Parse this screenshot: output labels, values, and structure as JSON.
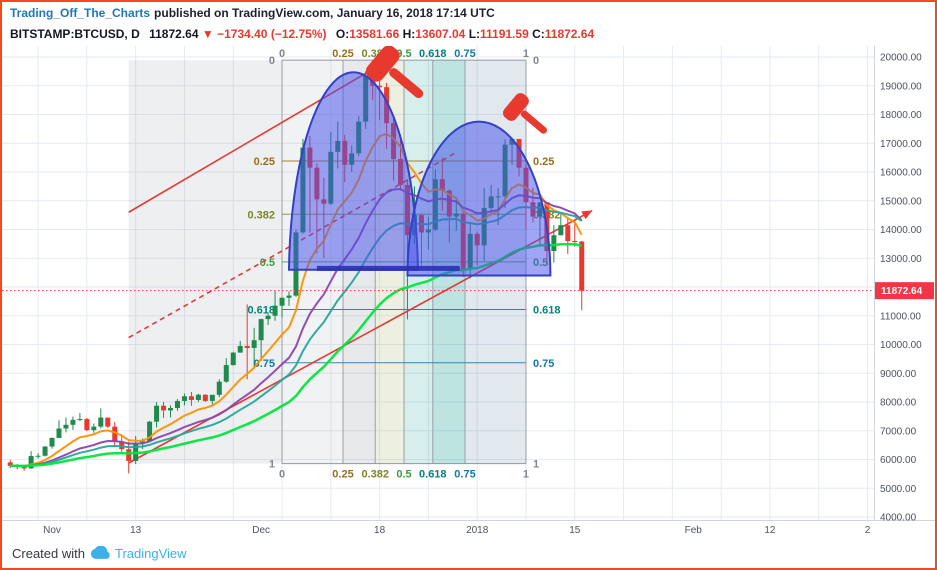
{
  "header": {
    "author": "Trading_Off_The_Charts",
    "published": "published on TradingView.com, January 16, 2018 17:14 UTC"
  },
  "symbol_bar": {
    "symbol": "BITSTAMP:BTCUSD, D",
    "price": "11872.64",
    "arrow": "▼",
    "change": "−1734.40 (−12.75%)",
    "o_label": "O:",
    "o_value": "13581.66",
    "h_label": "H:",
    "h_value": "13607.04",
    "l_label": "L:",
    "l_value": "11191.59",
    "c_label": "C:",
    "c_value": "11872.64"
  },
  "footer": {
    "created_with": "Created with",
    "brand": "TradingView"
  },
  "chart_data": {
    "type": "candlestick",
    "symbol": "BITSTAMP:BTCUSD",
    "interval": "D",
    "start_date_of_first_bar": "2017-10-26",
    "last_price": 11872.64,
    "last_price_label": "11872.64",
    "price_axis": {
      "min": 4000,
      "max": 20000,
      "step": 1000,
      "labels": [
        "20000.00",
        "19000.00",
        "18000.00",
        "17000.00",
        "16000.00",
        "15000.00",
        "14000.00",
        "13000.00",
        "12000.00",
        "11000.00",
        "10000.00",
        "9000.00",
        "8000.00",
        "7000.00",
        "6000.00",
        "5000.00",
        "4000.00"
      ]
    },
    "time_ticks": [
      {
        "day": 6,
        "label": "Nov"
      },
      {
        "day": 18,
        "label": "13"
      },
      {
        "day": 36,
        "label": "Dec"
      },
      {
        "day": 53,
        "label": "18"
      },
      {
        "day": 67,
        "label": "2018"
      },
      {
        "day": 81,
        "label": "15"
      },
      {
        "day": 98,
        "label": "Feb"
      },
      {
        "day": 109,
        "label": "12"
      },
      {
        "day": 123,
        "label": "2"
      }
    ],
    "colors": {
      "up": "#208a4c",
      "down": "#e8392f",
      "grid": "#e5ebf1",
      "axis_text": "#4c525e",
      "price_line": "#f23645"
    },
    "moving_averages": [
      {
        "period": 10,
        "color": "#ff9100",
        "width": 2
      },
      {
        "period": 21,
        "color": "#8e44ad",
        "width": 2
      },
      {
        "period": 30,
        "color": "#26a69a",
        "width": 2
      },
      {
        "period": 55,
        "color": "#00e63c",
        "width": 2.5
      }
    ],
    "ohlc": [
      [
        5900,
        5988,
        5700,
        5780
      ],
      [
        5780,
        5840,
        5656,
        5754
      ],
      [
        5754,
        5795,
        5611,
        5690
      ],
      [
        5690,
        6290,
        5684,
        6120
      ],
      [
        6120,
        6222,
        6030,
        6130
      ],
      [
        6130,
        6470,
        6103,
        6450
      ],
      [
        6450,
        6767,
        6377,
        6750
      ],
      [
        6750,
        7367,
        6758,
        7078
      ],
      [
        7078,
        7461,
        6945,
        7207
      ],
      [
        7207,
        7492,
        7031,
        7379
      ],
      [
        7379,
        7617,
        7333,
        7407
      ],
      [
        7407,
        7445,
        6988,
        7022
      ],
      [
        7022,
        7253,
        6927,
        7144
      ],
      [
        7144,
        7776,
        7080,
        7459
      ],
      [
        7459,
        7459,
        7101,
        7143
      ],
      [
        7143,
        7312,
        6436,
        6618
      ],
      [
        6618,
        6873,
        6204,
        6357
      ],
      [
        6357,
        6625,
        5519,
        5950
      ],
      [
        5950,
        6811,
        5844,
        6559
      ],
      [
        6559,
        6731,
        6361,
        6635
      ],
      [
        6635,
        7342,
        6634,
        7315
      ],
      [
        7315,
        7997,
        7114,
        7871
      ],
      [
        7871,
        8004,
        7448,
        7708
      ],
      [
        7708,
        7884,
        7463,
        7790
      ],
      [
        7790,
        8101,
        7694,
        8036
      ],
      [
        8036,
        8296,
        7884,
        8200
      ],
      [
        8200,
        8348,
        7868,
        8071
      ],
      [
        8071,
        8289,
        8005,
        8253
      ],
      [
        8253,
        8267,
        8002,
        8038
      ],
      [
        8038,
        8250,
        7858,
        8250
      ],
      [
        8250,
        8790,
        8169,
        8707
      ],
      [
        8707,
        9522,
        8668,
        9284
      ],
      [
        9284,
        9747,
        9267,
        9718
      ],
      [
        9718,
        10125,
        9716,
        9950
      ],
      [
        9950,
        11395,
        8787,
        9880
      ],
      [
        9880,
        10580,
        9170,
        10150
      ],
      [
        10150,
        10898,
        9425,
        10883
      ],
      [
        10883,
        11115,
        10678,
        11000
      ],
      [
        11000,
        11850,
        10825,
        11350
      ],
      [
        11350,
        11625,
        10950,
        11625
      ],
      [
        11625,
        11850,
        11350,
        11700
      ],
      [
        11700,
        14000,
        11660,
        13900
      ],
      [
        13900,
        17150,
        13850,
        16850
      ],
      [
        16850,
        17250,
        13900,
        16150
      ],
      [
        16150,
        16300,
        13160,
        15050
      ],
      [
        15050,
        15800,
        13000,
        14900
      ],
      [
        14900,
        17400,
        14850,
        16700
      ],
      [
        16700,
        17750,
        16125,
        17080
      ],
      [
        17080,
        17300,
        15650,
        16250
      ],
      [
        16250,
        16920,
        16000,
        16650
      ],
      [
        16650,
        17950,
        16550,
        17750
      ],
      [
        17750,
        19500,
        17500,
        19350
      ],
      [
        19350,
        19891,
        18500,
        19000
      ],
      [
        19000,
        19250,
        17800,
        18950
      ],
      [
        18950,
        19100,
        16800,
        17700
      ],
      [
        17700,
        17950,
        15700,
        16450
      ],
      [
        16450,
        17300,
        15350,
        15550
      ],
      [
        15550,
        15750,
        10875,
        13800
      ],
      [
        13800,
        15500,
        13500,
        14500
      ],
      [
        14500,
        14550,
        12750,
        13900
      ],
      [
        13900,
        14450,
        13300,
        14000
      ],
      [
        14000,
        16100,
        13950,
        15750
      ],
      [
        15750,
        16500,
        14650,
        15350
      ],
      [
        15350,
        15400,
        13550,
        14450
      ],
      [
        14450,
        15100,
        13950,
        14550
      ],
      [
        14550,
        14600,
        12350,
        12600
      ],
      [
        12600,
        14250,
        12300,
        13850
      ],
      [
        13850,
        13920,
        12750,
        13450
      ],
      [
        13450,
        15450,
        12900,
        14750
      ],
      [
        14750,
        15550,
        14550,
        15150
      ],
      [
        15150,
        15450,
        14150,
        15150
      ],
      [
        15150,
        17150,
        14750,
        16950
      ],
      [
        16950,
        17200,
        16250,
        17150
      ],
      [
        17150,
        17150,
        15850,
        16150
      ],
      [
        16150,
        16300,
        14000,
        14950
      ],
      [
        14950,
        15450,
        14250,
        14450
      ],
      [
        14450,
        14950,
        13400,
        14950
      ],
      [
        14950,
        14950,
        12800,
        13250
      ],
      [
        13250,
        14150,
        12850,
        13800
      ],
      [
        13800,
        14550,
        13800,
        14150
      ],
      [
        14150,
        14400,
        13150,
        13600
      ],
      [
        13600,
        14350,
        13400,
        13581.66
      ],
      [
        13581.66,
        13607.04,
        11191.59,
        11872.64
      ]
    ],
    "annotations": {
      "gray_region": {
        "x1_day": 17,
        "x2_day": 39,
        "price_high": 19891,
        "price_low": 5856,
        "fill": "rgba(125,130,140,0.13)"
      },
      "gann_box": {
        "x1_day": 39,
        "x2_day": 74,
        "price_high": 19891,
        "price_low": 5856,
        "fractions": [
          0,
          0.25,
          0.382,
          0.5,
          0.618,
          0.75,
          1
        ],
        "level_labels": [
          "0",
          "0.25",
          "0.382",
          "0.5",
          "0.618",
          "0.75",
          "1"
        ],
        "level_colors": [
          "#808691",
          "#96711c",
          "#7c8722",
          "#3f9b3f",
          "#00837a",
          "#1279ab",
          "#808691"
        ],
        "strip_fills": [
          "rgba(120,123,134,0.10)",
          "rgba(120,123,134,0.17)",
          "rgba(140,160,70,0.16)",
          "rgba(0,150,136,0.16)",
          "rgba(0,150,136,0.26)",
          "rgba(70,110,150,0.16)"
        ]
      },
      "channel": {
        "color": "#e53935",
        "upper": {
          "d1": 17,
          "p1": 14600,
          "d2": 56,
          "p2": 20140
        },
        "middle": {
          "d1": 17,
          "p1": 10239,
          "d2": 64,
          "p2": 16680
        },
        "lower": {
          "d1": 17,
          "p1": 5878,
          "d2": 83.5,
          "p2": 14660
        }
      },
      "dome_style": {
        "fill": "rgba(72,82,235,0.52)",
        "stroke": "#3340c8"
      },
      "domes": [
        {
          "d1": 40,
          "d2": 58.5,
          "base_price": 12600,
          "apex_price": 19750
        },
        {
          "d1": 57,
          "d2": 77.5,
          "base_price": 12400,
          "apex_price": 17750
        }
      ],
      "neckline": {
        "d1": 44,
        "d2": 64.5,
        "price": 12650,
        "color": "#2b2fb8",
        "width": 5
      },
      "hammer_color": "#e8392f",
      "hammers": [
        {
          "day": 54.8,
          "price": 19500,
          "rotation": 40,
          "scale": 1.3
        },
        {
          "day": 73.6,
          "price": 18050,
          "rotation": 40,
          "scale": 1.0
        }
      ]
    }
  }
}
